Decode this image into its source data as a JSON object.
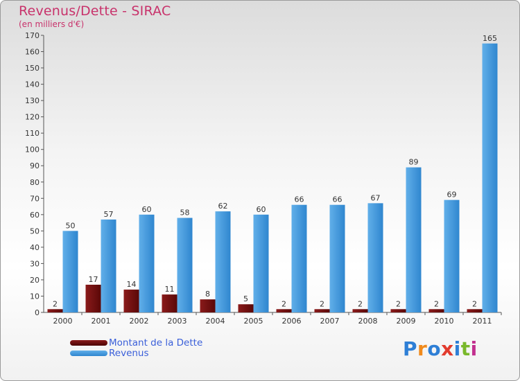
{
  "title": "Revenus/Dette - SIRAC",
  "subtitle": "(en milliers d'€)",
  "brand": {
    "text": "Proxiti",
    "colors": [
      "#2e7fd6",
      "#f08a1c",
      "#2e7fd6",
      "#e23b2e",
      "#2e7fd6",
      "#79b82b",
      "#c2308f"
    ]
  },
  "colors": {
    "debt": "#7a0f0f",
    "revenue": "#3d9be0",
    "title": "#c8326b",
    "legend_text": "#3a5fd9"
  },
  "legend": [
    {
      "label": "Montant de la Dette",
      "series": "debt"
    },
    {
      "label": "Revenus",
      "series": "revenue"
    }
  ],
  "chart_data": {
    "type": "bar",
    "title": "Revenus/Dette - SIRAC",
    "ylabel": "(en milliers d'€)",
    "xlabel": "",
    "categories": [
      "2000",
      "2001",
      "2002",
      "2003",
      "2004",
      "2005",
      "2006",
      "2007",
      "2008",
      "2009",
      "2010",
      "2011"
    ],
    "series": [
      {
        "name": "Montant de la Dette",
        "values": [
          2,
          17,
          14,
          11,
          8,
          5,
          2,
          2,
          2,
          2,
          2,
          2
        ]
      },
      {
        "name": "Revenus",
        "values": [
          50,
          57,
          60,
          58,
          62,
          60,
          66,
          66,
          67,
          89,
          69,
          165
        ]
      }
    ],
    "ylim": [
      0,
      170
    ],
    "yticks": [
      0,
      10,
      20,
      30,
      40,
      50,
      60,
      70,
      80,
      90,
      100,
      110,
      120,
      130,
      140,
      150,
      160,
      170
    ],
    "grid": false,
    "legend_position": "bottom-left"
  }
}
